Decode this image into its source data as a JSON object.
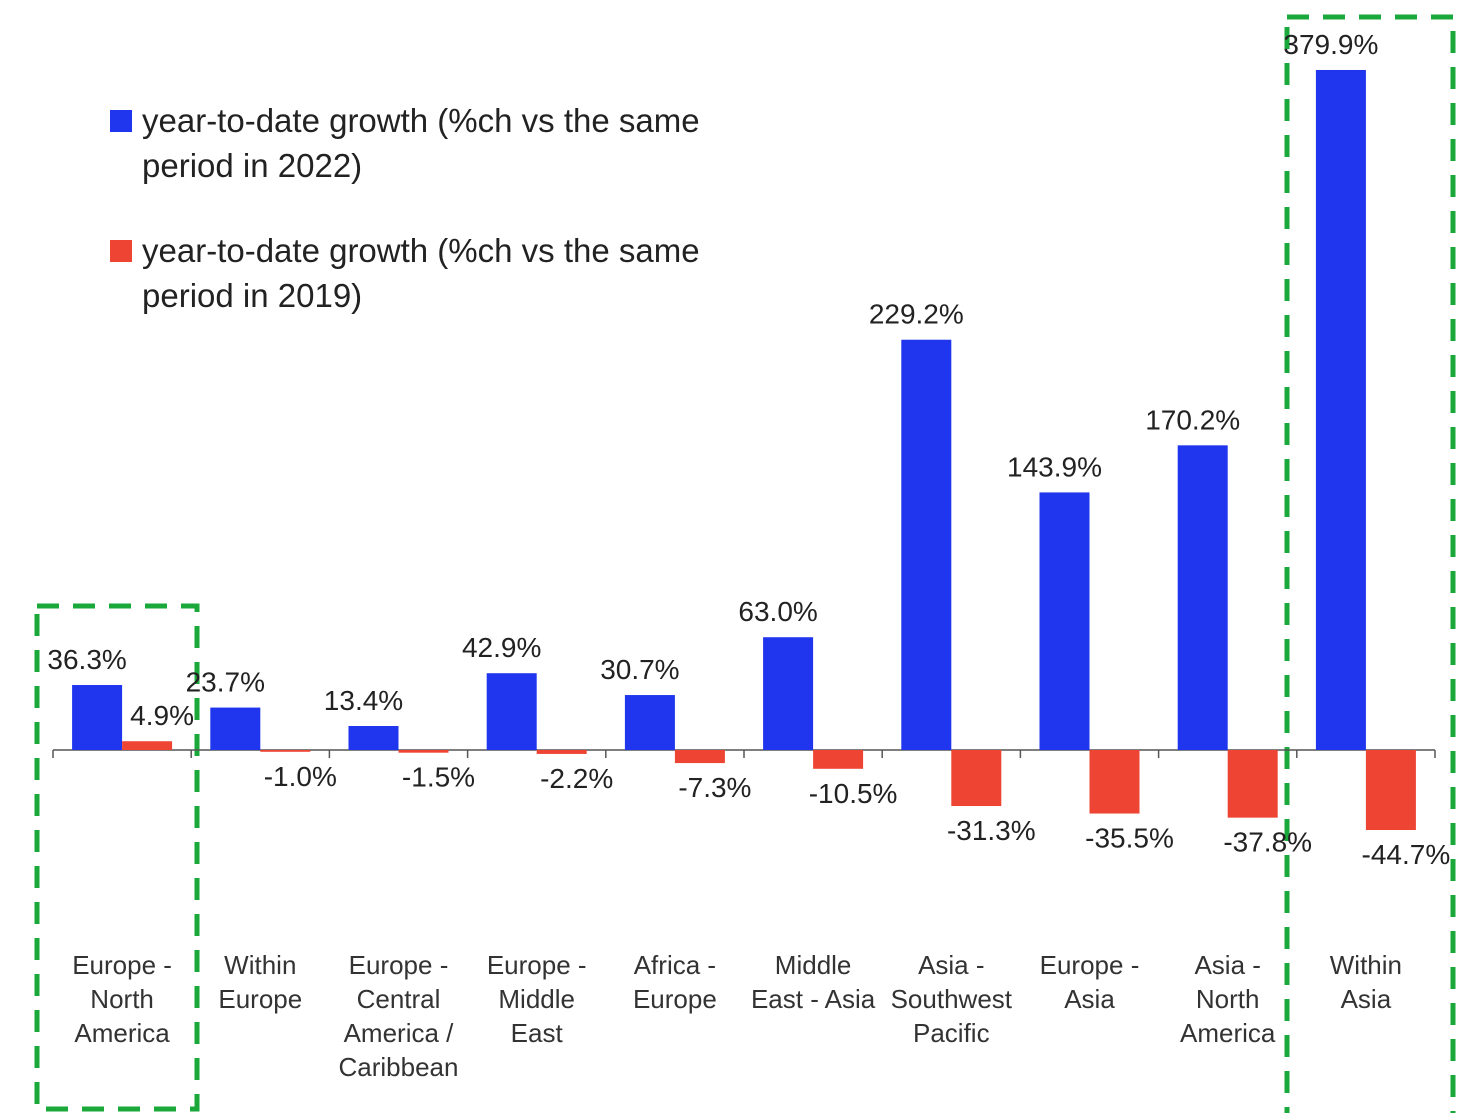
{
  "chart_data": {
    "type": "bar",
    "categories": [
      "Europe - North America",
      "Within Europe",
      "Europe - Central America / Caribbean",
      "Europe - Middle East",
      "Africa - Europe",
      "Middle East - Asia",
      "Asia - Southwest Pacific",
      "Europe - Asia",
      "Asia - North America",
      "Within Asia"
    ],
    "series": [
      {
        "name": "year-to-date growth (%ch vs the same period in 2022)",
        "color": "#1f35ee",
        "values": [
          36.3,
          23.7,
          13.4,
          42.9,
          30.7,
          63.0,
          229.2,
          143.9,
          170.2,
          379.9
        ],
        "value_labels": [
          "36.3%",
          "23.7%",
          "13.4%",
          "42.9%",
          "30.7%",
          "63.0%",
          "229.2%",
          "143.9%",
          "170.2%",
          "379.9%"
        ]
      },
      {
        "name": "year-to-date growth (%ch vs the same period in 2019)",
        "color": "#ee4433",
        "values": [
          4.9,
          -1.0,
          -1.5,
          -2.2,
          -7.3,
          -10.5,
          -31.3,
          -35.5,
          -37.8,
          -44.7
        ],
        "value_labels": [
          "4.9%",
          "-1.0%",
          "-1.5%",
          "-2.2%",
          "-7.3%",
          "-10.5%",
          "-31.3%",
          "-35.5%",
          "-37.8%",
          "-44.7%"
        ]
      }
    ]
  }
}
